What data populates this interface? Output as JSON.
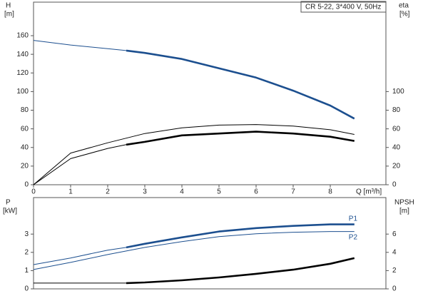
{
  "chart_data": [
    {
      "type": "line",
      "title": "CR 5-22, 3*400 V, 50Hz",
      "ylabel": "H",
      "yunit": "[m]",
      "y2label": "eta",
      "y2unit": "[%]",
      "xlabel": "Q [m³/h]",
      "xlim": [
        0,
        9.5
      ],
      "xticks": [
        0,
        1,
        2,
        3,
        4,
        5,
        6,
        7,
        8
      ],
      "ylim": [
        0,
        196
      ],
      "yticks": [
        0,
        20,
        40,
        60,
        80,
        100,
        120,
        140,
        160
      ],
      "y2lim": [
        0,
        196
      ],
      "y2ticks": [
        0,
        20,
        40,
        60,
        80,
        100
      ],
      "series": [
        {
          "color": "#1c4f8f",
          "axis": "y",
          "bold_from": 2.5,
          "x": [
            0,
            1,
            2,
            2.5,
            3,
            4,
            5,
            6,
            7,
            8,
            8.65
          ],
          "values": [
            155,
            150,
            146,
            144,
            141.5,
            135,
            125,
            115,
            101,
            85,
            71
          ]
        },
        {
          "color": "#000000",
          "axis": "y2",
          "bold_from": 9,
          "x": [
            0,
            1,
            2,
            3,
            4,
            5,
            6,
            7,
            8,
            8.65
          ],
          "values": [
            0,
            34,
            45,
            55,
            61,
            64,
            64.6,
            63,
            59,
            54
          ]
        },
        {
          "color": "#000000",
          "axis": "y2",
          "bold_from": 2.5,
          "x": [
            0,
            1,
            2,
            2.5,
            3,
            4,
            5,
            6,
            7,
            8,
            8.65
          ],
          "values": [
            0,
            28,
            39,
            43,
            46,
            53,
            55,
            57,
            55,
            51.5,
            47
          ]
        }
      ]
    },
    {
      "type": "line",
      "ylabel": "P",
      "yunit": "[kW]",
      "y2label": "NPSH",
      "y2unit": "[m]",
      "xlim": [
        0,
        9.5
      ],
      "ylim": [
        0,
        5
      ],
      "yticks": [
        0,
        1,
        2,
        3
      ],
      "y2lim": [
        0,
        10
      ],
      "y2ticks": [
        0,
        2,
        4,
        6
      ],
      "series": [
        {
          "name": "P1",
          "color": "#1c4f8f",
          "axis": "y",
          "bold_from": 2.5,
          "x": [
            0,
            1,
            2,
            2.5,
            3,
            4,
            5,
            6,
            7,
            8,
            8.65
          ],
          "values": [
            1.33,
            1.69,
            2.12,
            2.27,
            2.47,
            2.82,
            3.14,
            3.33,
            3.45,
            3.53,
            3.53
          ]
        },
        {
          "name": "P2",
          "color": "#1c4f8f",
          "axis": "y",
          "bold_from": 9,
          "x": [
            0,
            1,
            2,
            3,
            4,
            5,
            6,
            7,
            8,
            8.65
          ],
          "values": [
            1.06,
            1.45,
            1.88,
            2.27,
            2.59,
            2.86,
            3.02,
            3.1,
            3.14,
            3.14
          ]
        },
        {
          "color": "#000000",
          "axis": "y2",
          "bold_from": 2.5,
          "x": [
            0,
            1,
            2,
            2.5,
            3,
            4,
            5,
            6,
            7,
            8,
            8.65
          ],
          "values": [
            0.63,
            0.63,
            0.63,
            0.63,
            0.7,
            0.94,
            1.25,
            1.65,
            2.1,
            2.75,
            3.37
          ]
        }
      ]
    }
  ]
}
